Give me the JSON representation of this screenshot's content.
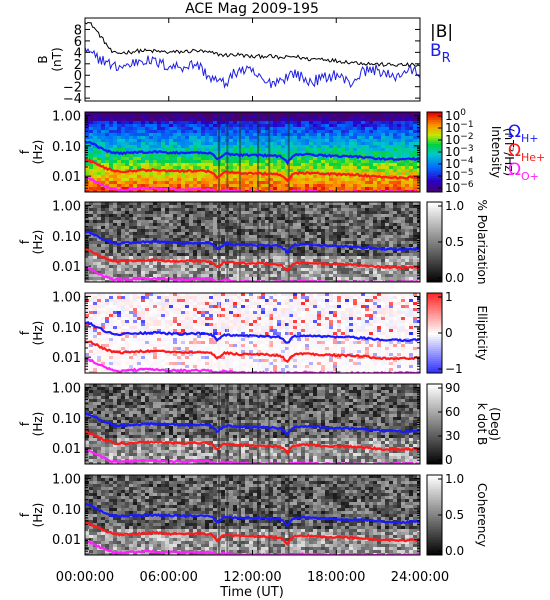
{
  "title": "ACE Mag 2009-195",
  "xlabel": "Time (UT)",
  "x_ticks": [
    "00:00:00",
    "06:00:00",
    "12:00:00",
    "18:00:00",
    "24:00:00"
  ],
  "x_tick_hours": [
    0,
    6,
    12,
    18,
    24
  ],
  "x_range_hours": [
    0,
    24
  ],
  "f_tick_labels": [
    "1.00",
    "0.10",
    "0.01"
  ],
  "f_tick_values": [
    1.0,
    0.1,
    0.01
  ],
  "f_range_hz": [
    0.003,
    1.3
  ],
  "f_ylabel": [
    "f",
    "(Hz)"
  ],
  "b_ylabel": [
    "B",
    "(nT)"
  ],
  "b_ticks": [
    "8",
    "6",
    "4",
    "2",
    "0",
    "−2",
    "−4"
  ],
  "b_tick_values": [
    8,
    6,
    4,
    2,
    0,
    -2,
    -4
  ],
  "b_range": [
    -4.5,
    10
  ],
  "legend_b": [
    {
      "text": "|B|",
      "color": "#000000"
    },
    {
      "text": "B",
      "sub": "R",
      "color": "#2020e0"
    }
  ],
  "gyro_legend": [
    {
      "sym": "Ω",
      "sub": "H+",
      "color": "#1a1aff"
    },
    {
      "sym": "Ω",
      "sub": "He+",
      "color": "#ff1a1a"
    },
    {
      "sym": "Ω",
      "sub": "O+",
      "color": "#ff20ff"
    }
  ],
  "colors": {
    "omega_h": "#1a1aff",
    "omega_he": "#ff1a1a",
    "omega_o": "#ff20ff",
    "b_mag": "#000000",
    "b_r": "#2020e0"
  },
  "colorbars": [
    {
      "id": "intensity",
      "label": "Intensity",
      "unit": "(nT²/Hz)",
      "map": "rainbow",
      "ticks": [
        {
          "base": "10",
          "exp": "0"
        },
        {
          "base": "10",
          "exp": "−1"
        },
        {
          "base": "10",
          "exp": "−2"
        },
        {
          "base": "10",
          "exp": "−3"
        },
        {
          "base": "10",
          "exp": "−4"
        },
        {
          "base": "10",
          "exp": "−5"
        },
        {
          "base": "10",
          "exp": "−6"
        }
      ],
      "range": [
        -6,
        0
      ]
    },
    {
      "id": "polarization",
      "label": "% Polarization",
      "unit": "",
      "map": "gray",
      "ticks": [
        {
          "base": "1.0"
        },
        {
          "base": "0.5"
        },
        {
          "base": "0.0"
        }
      ],
      "range": [
        0,
        1
      ]
    },
    {
      "id": "ellipticity",
      "label": "Ellipticity",
      "unit": "",
      "map": "bwr",
      "ticks": [
        {
          "base": "1"
        },
        {
          "base": "0"
        },
        {
          "base": "−1"
        }
      ],
      "range": [
        -1,
        1
      ]
    },
    {
      "id": "kdotb",
      "label": "k dot B",
      "unit": "(Deg)",
      "map": "gray",
      "ticks": [
        {
          "base": "90"
        },
        {
          "base": "60"
        },
        {
          "base": "30"
        },
        {
          "base": "0"
        }
      ],
      "range": [
        0,
        90
      ]
    },
    {
      "id": "coherency",
      "label": "Coherency",
      "unit": "",
      "map": "gray",
      "ticks": [
        {
          "base": "1.0"
        },
        {
          "base": "0.5"
        },
        {
          "base": "0.0"
        }
      ],
      "range": [
        0,
        1
      ]
    }
  ],
  "chart_data": [
    {
      "type": "line",
      "title": "ACE Mag 2009-195",
      "xlabel": "Time (UT)",
      "ylabel": "B (nT)",
      "xlim_hours": [
        0,
        24
      ],
      "ylim": [
        -4.5,
        10
      ],
      "x_hours": [
        0,
        0.5,
        1,
        1.5,
        2,
        3,
        4,
        5,
        6,
        7,
        8,
        9,
        10,
        11,
        12,
        13,
        14,
        15,
        16,
        17,
        18,
        19,
        20,
        21,
        22,
        23,
        24
      ],
      "series": [
        {
          "name": "|B|",
          "values": [
            9.5,
            8.8,
            7.2,
            5.5,
            3.8,
            4.0,
            4.3,
            4.2,
            4.0,
            4.1,
            4.3,
            3.9,
            3.5,
            3.6,
            3.2,
            3.4,
            3.0,
            3.3,
            2.8,
            2.9,
            2.5,
            2.3,
            2.1,
            1.9,
            1.8,
            1.8,
            1.7
          ]
        },
        {
          "name": "B_R",
          "values": [
            4.2,
            3.5,
            3.0,
            2.4,
            1.5,
            1.6,
            2.8,
            2.3,
            1.6,
            1.5,
            2.0,
            -0.5,
            -1.5,
            1.0,
            0.5,
            -1.5,
            -0.8,
            0.5,
            -1.2,
            -0.6,
            0.2,
            -1.5,
            0.8,
            1.0,
            -0.5,
            0.8,
            0.5
          ]
        }
      ]
    },
    {
      "type": "heatmap",
      "id": "intensity",
      "ylabel": "f (Hz)",
      "y_scale": "log",
      "ylim_hz": [
        0.003,
        1.3
      ],
      "colorbar_label": "Intensity (nT²/Hz)",
      "color_range_log10": [
        -6,
        0
      ],
      "overlays": [
        "ΩH+",
        "ΩHe+",
        "ΩO+"
      ]
    },
    {
      "type": "heatmap",
      "id": "polarization",
      "ylabel": "f (Hz)",
      "y_scale": "log",
      "colorbar_label": "% Polarization",
      "color_range": [
        0,
        1
      ]
    },
    {
      "type": "heatmap",
      "id": "ellipticity",
      "ylabel": "f (Hz)",
      "y_scale": "log",
      "colorbar_label": "Ellipticity",
      "color_range": [
        -1,
        1
      ]
    },
    {
      "type": "heatmap",
      "id": "kdotb",
      "ylabel": "f (Hz)",
      "y_scale": "log",
      "colorbar_label": "k dot B (Deg)",
      "color_range": [
        0,
        90
      ]
    },
    {
      "type": "heatmap",
      "id": "coherency",
      "ylabel": "f (Hz)",
      "y_scale": "log",
      "colorbar_label": "Coherency",
      "color_range": [
        0,
        1
      ]
    }
  ],
  "gyrofrequencies": {
    "x_hours": [
      0,
      0.5,
      1,
      1.5,
      2,
      2.5,
      3,
      4,
      5,
      6,
      7,
      8,
      9,
      9.5,
      10,
      11,
      12,
      13,
      14,
      14.5,
      15,
      16,
      17,
      18,
      19,
      20,
      21,
      22,
      23,
      24
    ],
    "omega_h_hz": [
      0.14,
      0.12,
      0.09,
      0.07,
      0.058,
      0.056,
      0.058,
      0.062,
      0.063,
      0.06,
      0.058,
      0.06,
      0.058,
      0.035,
      0.055,
      0.05,
      0.05,
      0.048,
      0.045,
      0.028,
      0.05,
      0.052,
      0.048,
      0.046,
      0.045,
      0.042,
      0.038,
      0.036,
      0.036,
      0.038
    ],
    "omega_he_hz": [
      0.035,
      0.03,
      0.023,
      0.018,
      0.015,
      0.014,
      0.0145,
      0.0155,
      0.016,
      0.015,
      0.0145,
      0.015,
      0.0145,
      0.0088,
      0.014,
      0.0125,
      0.0125,
      0.012,
      0.0113,
      0.007,
      0.0125,
      0.013,
      0.012,
      0.0115,
      0.0113,
      0.0105,
      0.0095,
      0.009,
      0.009,
      0.0095
    ],
    "omega_o_hz": [
      0.0087,
      0.0075,
      0.0056,
      0.0044,
      0.0036,
      0.0035,
      0.0036,
      0.0039,
      0.0039,
      0.0037,
      0.0036,
      0.0037,
      0.0036,
      0.003,
      0.0035,
      0.0031,
      0.0031,
      0.003,
      0.003,
      0.003,
      0.0031,
      0.0032,
      0.003,
      0.003,
      0.003,
      0.003,
      0.003,
      0.003,
      0.003,
      0.003
    ]
  }
}
